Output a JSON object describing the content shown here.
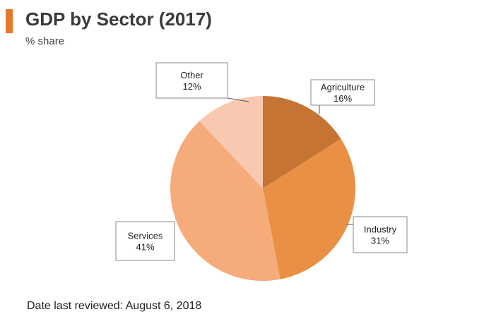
{
  "header": {
    "title": "GDP by Sector (2017)",
    "subtitle": "% share",
    "accent_color": "#e8772e"
  },
  "footer": {
    "text": "Date last reviewed: August 6, 2018"
  },
  "chart_data": {
    "type": "pie",
    "title": "GDP by Sector (2017)",
    "subtitle": "% share",
    "unit": "%",
    "start_angle_deg": 0,
    "direction": "clockwise",
    "slices": [
      {
        "label": "Agriculture",
        "value": 16,
        "value_label": "16%",
        "color": "#c57433"
      },
      {
        "label": "Industry",
        "value": 31,
        "value_label": "31%",
        "color": "#ea9044"
      },
      {
        "label": "Services",
        "value": 41,
        "value_label": "41%",
        "color": "#f6ab7a"
      },
      {
        "label": "Other",
        "value": 12,
        "value_label": "12%",
        "color": "#f8c9b0"
      }
    ],
    "legend": "none",
    "data_labels": "callouts"
  }
}
